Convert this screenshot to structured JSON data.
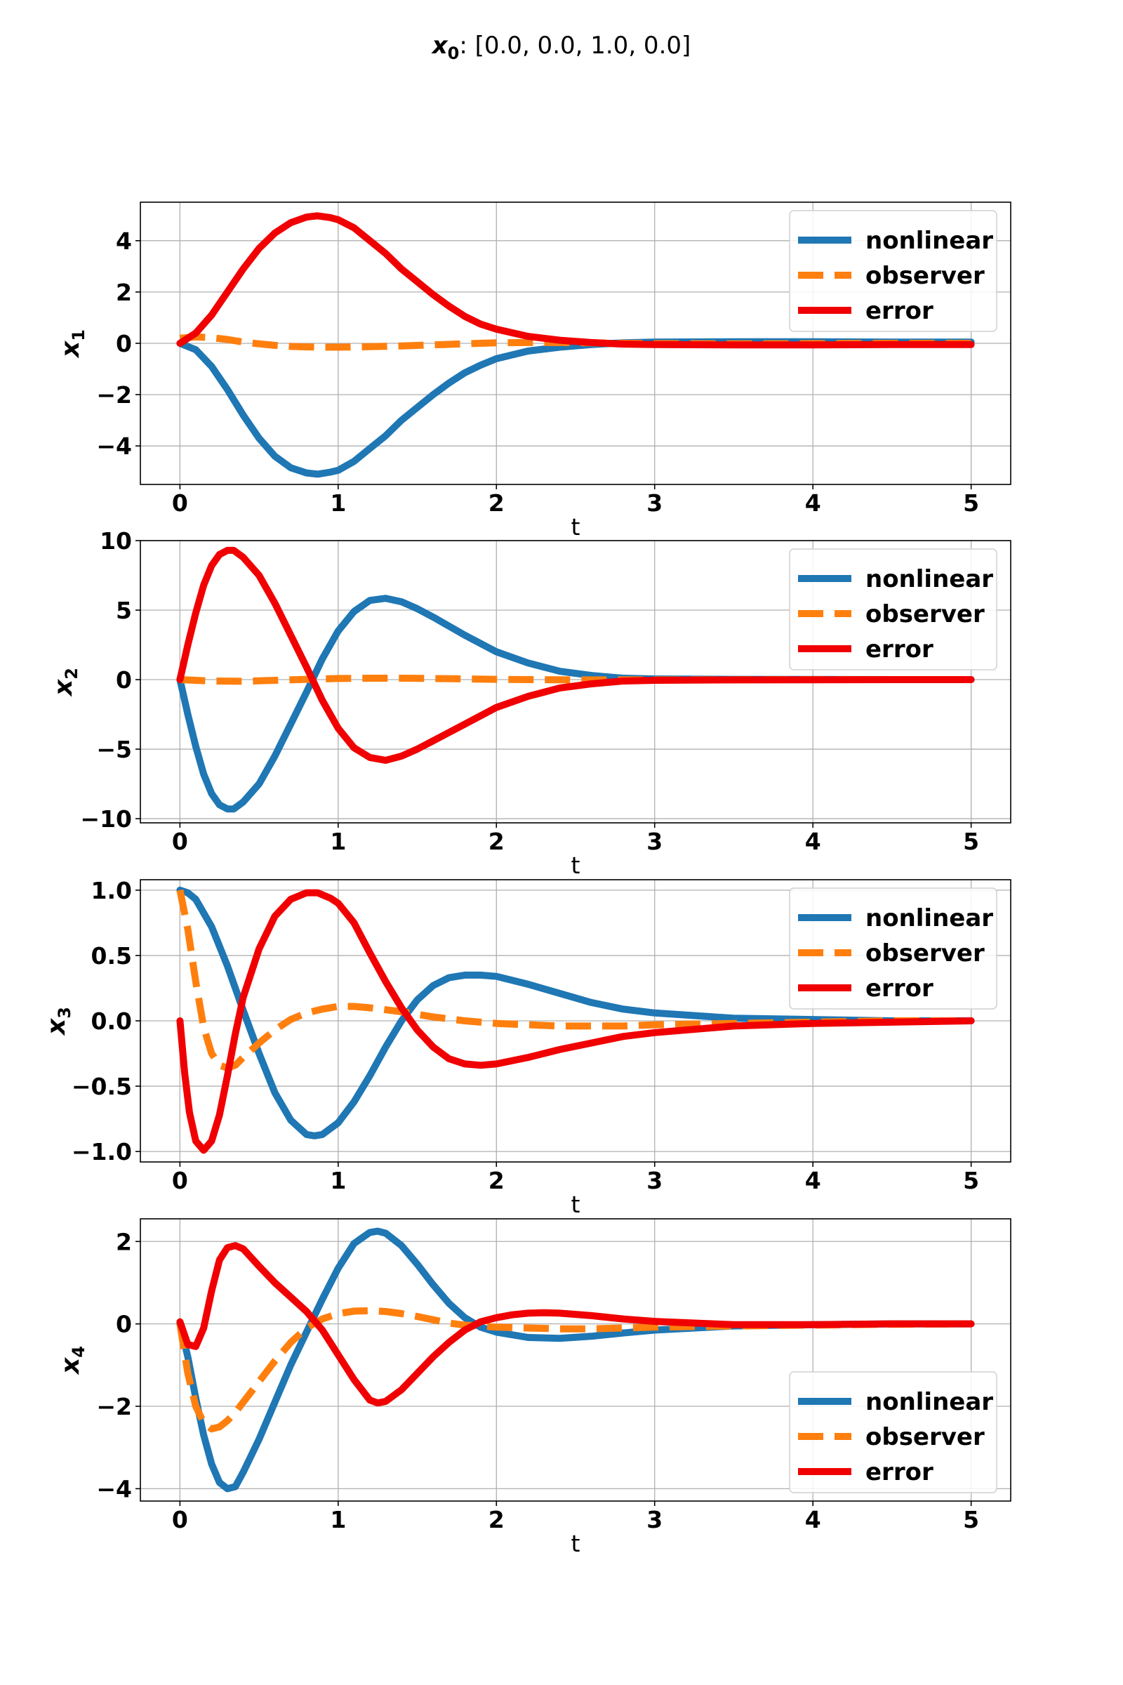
{
  "title": {
    "symbol": "x",
    "subscript": "0",
    "value": ": [0.0, 0.0, 1.0, 0.0]"
  },
  "colors": {
    "nonlinear": "#1f77b4",
    "observer": "#ff7f0e",
    "error": "#f00000",
    "grid": "#b0b0b0"
  },
  "chart_data": [
    {
      "type": "line",
      "xlabel": "t",
      "ylabel": "x",
      "ylabel_sub": "1",
      "xlim": [
        -0.25,
        5.25
      ],
      "ylim": [
        -5.5,
        5.5
      ],
      "xticks": [
        0,
        1,
        2,
        3,
        4,
        5
      ],
      "xtick_labels": [
        "0",
        "1",
        "2",
        "3",
        "4",
        "5"
      ],
      "yticks": [
        -4,
        -2,
        0,
        2,
        4
      ],
      "ytick_labels": [
        "−4",
        "−2",
        "0",
        "2",
        "4"
      ],
      "grid": true,
      "legend": "upper right",
      "series": [
        {
          "name": "nonlinear",
          "style": "solid",
          "x": [
            0,
            0.1,
            0.2,
            0.3,
            0.4,
            0.5,
            0.6,
            0.7,
            0.8,
            0.87,
            0.95,
            1.0,
            1.1,
            1.2,
            1.3,
            1.4,
            1.5,
            1.6,
            1.7,
            1.8,
            1.9,
            2.0,
            2.2,
            2.4,
            2.6,
            2.8,
            3.0,
            3.5,
            4.0,
            4.5,
            5.0
          ],
          "y": [
            0,
            -0.25,
            -0.9,
            -1.8,
            -2.8,
            -3.7,
            -4.4,
            -4.85,
            -5.05,
            -5.1,
            -5.02,
            -4.95,
            -4.6,
            -4.1,
            -3.6,
            -3.0,
            -2.5,
            -2.0,
            -1.55,
            -1.15,
            -0.85,
            -0.6,
            -0.3,
            -0.15,
            -0.05,
            0.02,
            0.05,
            0.06,
            0.06,
            0.05,
            0.05
          ]
        },
        {
          "name": "observer",
          "style": "dashed",
          "x": [
            0,
            0.1,
            0.2,
            0.3,
            0.4,
            0.5,
            0.6,
            0.7,
            0.8,
            0.9,
            1.0,
            1.2,
            1.4,
            1.6,
            1.8,
            2.0,
            2.2,
            2.4,
            2.6,
            2.8,
            3.0,
            3.5,
            4.0,
            4.5,
            5.0
          ],
          "y": [
            0.2,
            0.25,
            0.22,
            0.15,
            0.05,
            -0.02,
            -0.08,
            -0.12,
            -0.14,
            -0.15,
            -0.15,
            -0.13,
            -0.1,
            -0.06,
            -0.02,
            0.02,
            0.03,
            0.03,
            0.02,
            0.0,
            -0.01,
            -0.02,
            -0.01,
            0.0,
            0.0
          ]
        },
        {
          "name": "error",
          "style": "solid",
          "x": [
            0,
            0.1,
            0.2,
            0.3,
            0.4,
            0.5,
            0.6,
            0.7,
            0.8,
            0.87,
            0.95,
            1.0,
            1.1,
            1.2,
            1.3,
            1.4,
            1.5,
            1.6,
            1.7,
            1.8,
            1.9,
            2.0,
            2.2,
            2.4,
            2.6,
            2.8,
            3.0,
            3.5,
            4.0,
            4.5,
            5.0
          ],
          "y": [
            0,
            0.4,
            1.1,
            2.0,
            2.9,
            3.7,
            4.3,
            4.7,
            4.92,
            4.97,
            4.9,
            4.82,
            4.5,
            4.0,
            3.5,
            2.9,
            2.4,
            1.9,
            1.45,
            1.05,
            0.75,
            0.55,
            0.27,
            0.12,
            0.03,
            -0.03,
            -0.05,
            -0.06,
            -0.06,
            -0.05,
            -0.05
          ]
        }
      ]
    },
    {
      "type": "line",
      "xlabel": "t",
      "ylabel": "x",
      "ylabel_sub": "2",
      "xlim": [
        -0.25,
        5.25
      ],
      "ylim": [
        -10.3,
        10.0
      ],
      "xticks": [
        0,
        1,
        2,
        3,
        4,
        5
      ],
      "xtick_labels": [
        "0",
        "1",
        "2",
        "3",
        "4",
        "5"
      ],
      "yticks": [
        -10,
        -5,
        0,
        5,
        10
      ],
      "ytick_labels": [
        "−10",
        "−5",
        "0",
        "5",
        "10"
      ],
      "grid": true,
      "legend": "upper right",
      "series": [
        {
          "name": "nonlinear",
          "style": "solid",
          "x": [
            0,
            0.05,
            0.1,
            0.15,
            0.2,
            0.25,
            0.3,
            0.34,
            0.4,
            0.5,
            0.6,
            0.7,
            0.8,
            0.9,
            1.0,
            1.1,
            1.2,
            1.3,
            1.4,
            1.5,
            1.6,
            1.8,
            2.0,
            2.2,
            2.4,
            2.6,
            2.8,
            3.0,
            3.5,
            4.0,
            4.5,
            5.0
          ],
          "y": [
            0,
            -2.5,
            -4.8,
            -6.8,
            -8.2,
            -9.0,
            -9.3,
            -9.3,
            -8.8,
            -7.5,
            -5.5,
            -3.2,
            -0.9,
            1.5,
            3.5,
            4.9,
            5.7,
            5.85,
            5.6,
            5.1,
            4.5,
            3.2,
            2.0,
            1.2,
            0.6,
            0.3,
            0.1,
            0.05,
            0.02,
            0.01,
            0.0,
            0.0
          ]
        },
        {
          "name": "observer",
          "style": "dashed",
          "x": [
            0,
            0.2,
            0.4,
            0.6,
            0.8,
            1.0,
            1.2,
            1.4,
            1.6,
            1.8,
            2.0,
            2.2,
            2.5,
            3.0,
            3.5,
            4.0,
            4.5,
            5.0
          ],
          "y": [
            0,
            -0.1,
            -0.12,
            -0.05,
            0.02,
            0.08,
            0.1,
            0.1,
            0.08,
            0.05,
            0.02,
            0.0,
            -0.02,
            -0.02,
            -0.01,
            0.0,
            0.0,
            0.0
          ]
        },
        {
          "name": "error",
          "style": "solid",
          "x": [
            0,
            0.05,
            0.1,
            0.15,
            0.2,
            0.25,
            0.3,
            0.34,
            0.4,
            0.5,
            0.6,
            0.7,
            0.8,
            0.9,
            1.0,
            1.1,
            1.2,
            1.3,
            1.4,
            1.5,
            1.6,
            1.8,
            2.0,
            2.2,
            2.4,
            2.6,
            2.8,
            3.0,
            3.5,
            4.0,
            4.5,
            5.0
          ],
          "y": [
            0,
            2.5,
            4.8,
            6.8,
            8.2,
            9.0,
            9.3,
            9.3,
            8.8,
            7.5,
            5.5,
            3.2,
            0.9,
            -1.5,
            -3.5,
            -4.9,
            -5.6,
            -5.8,
            -5.5,
            -5.0,
            -4.4,
            -3.2,
            -2.0,
            -1.2,
            -0.6,
            -0.3,
            -0.1,
            -0.05,
            -0.02,
            -0.01,
            0.0,
            0.0
          ]
        }
      ]
    },
    {
      "type": "line",
      "xlabel": "t",
      "ylabel": "x",
      "ylabel_sub": "3",
      "xlim": [
        -0.25,
        5.25
      ],
      "ylim": [
        -1.08,
        1.08
      ],
      "xticks": [
        0,
        1,
        2,
        3,
        4,
        5
      ],
      "xtick_labels": [
        "0",
        "1",
        "2",
        "3",
        "4",
        "5"
      ],
      "yticks": [
        -1.0,
        -0.5,
        0.0,
        0.5,
        1.0
      ],
      "ytick_labels": [
        "−1.0",
        "−0.5",
        "0.0",
        "0.5",
        "1.0"
      ],
      "grid": true,
      "legend": "upper right",
      "series": [
        {
          "name": "nonlinear",
          "style": "solid",
          "x": [
            0,
            0.05,
            0.1,
            0.2,
            0.3,
            0.4,
            0.5,
            0.6,
            0.7,
            0.8,
            0.85,
            0.9,
            1.0,
            1.1,
            1.2,
            1.3,
            1.4,
            1.5,
            1.6,
            1.7,
            1.8,
            1.9,
            2.0,
            2.2,
            2.4,
            2.6,
            2.8,
            3.0,
            3.5,
            4.0,
            4.5,
            5.0
          ],
          "y": [
            1.0,
            0.98,
            0.93,
            0.72,
            0.42,
            0.08,
            -0.25,
            -0.55,
            -0.76,
            -0.87,
            -0.88,
            -0.87,
            -0.78,
            -0.62,
            -0.42,
            -0.2,
            0.0,
            0.16,
            0.27,
            0.33,
            0.35,
            0.35,
            0.34,
            0.28,
            0.21,
            0.14,
            0.09,
            0.06,
            0.02,
            0.01,
            0.0,
            0.0
          ]
        },
        {
          "name": "observer",
          "style": "dashed",
          "x": [
            0,
            0.05,
            0.1,
            0.15,
            0.2,
            0.25,
            0.3,
            0.35,
            0.4,
            0.5,
            0.6,
            0.7,
            0.8,
            0.9,
            1.0,
            1.1,
            1.2,
            1.4,
            1.6,
            1.8,
            2.0,
            2.2,
            2.4,
            2.6,
            2.8,
            3.0,
            3.5,
            4.0,
            4.5,
            5.0
          ],
          "y": [
            1.0,
            0.7,
            0.3,
            -0.05,
            -0.25,
            -0.34,
            -0.36,
            -0.34,
            -0.28,
            -0.17,
            -0.07,
            0.01,
            0.06,
            0.09,
            0.11,
            0.11,
            0.1,
            0.07,
            0.03,
            0.0,
            -0.02,
            -0.03,
            -0.04,
            -0.04,
            -0.04,
            -0.03,
            -0.02,
            -0.01,
            0.0,
            0.0
          ]
        },
        {
          "name": "error",
          "style": "solid",
          "x": [
            0,
            0.03,
            0.06,
            0.1,
            0.15,
            0.2,
            0.25,
            0.3,
            0.35,
            0.4,
            0.5,
            0.6,
            0.7,
            0.8,
            0.87,
            0.95,
            1.0,
            1.1,
            1.2,
            1.3,
            1.4,
            1.5,
            1.6,
            1.7,
            1.8,
            1.9,
            2.0,
            2.2,
            2.4,
            2.6,
            2.8,
            3.0,
            3.5,
            4.0,
            4.5,
            5.0
          ],
          "y": [
            0.0,
            -0.4,
            -0.7,
            -0.92,
            -0.99,
            -0.92,
            -0.72,
            -0.42,
            -0.1,
            0.18,
            0.55,
            0.8,
            0.93,
            0.98,
            0.98,
            0.94,
            0.9,
            0.75,
            0.52,
            0.3,
            0.1,
            -0.07,
            -0.2,
            -0.29,
            -0.33,
            -0.34,
            -0.33,
            -0.28,
            -0.22,
            -0.17,
            -0.12,
            -0.09,
            -0.04,
            -0.02,
            -0.01,
            0.0
          ]
        }
      ]
    },
    {
      "type": "line",
      "xlabel": "t",
      "ylabel": "x",
      "ylabel_sub": "4",
      "xlim": [
        -0.25,
        5.25
      ],
      "ylim": [
        -4.3,
        2.55
      ],
      "xticks": [
        0,
        1,
        2,
        3,
        4,
        5
      ],
      "xtick_labels": [
        "0",
        "1",
        "2",
        "3",
        "4",
        "5"
      ],
      "yticks": [
        -4,
        -2,
        0,
        2
      ],
      "ytick_labels": [
        "−4",
        "−2",
        "0",
        "2"
      ],
      "grid": true,
      "legend": "lower right",
      "series": [
        {
          "name": "nonlinear",
          "style": "solid",
          "x": [
            0,
            0.05,
            0.1,
            0.15,
            0.2,
            0.25,
            0.3,
            0.35,
            0.4,
            0.5,
            0.6,
            0.7,
            0.8,
            0.9,
            1.0,
            1.1,
            1.2,
            1.25,
            1.3,
            1.4,
            1.5,
            1.6,
            1.7,
            1.8,
            1.9,
            2.0,
            2.2,
            2.4,
            2.6,
            2.8,
            3.0,
            3.5,
            4.0,
            4.5,
            5.0
          ],
          "y": [
            0,
            -0.8,
            -1.8,
            -2.7,
            -3.4,
            -3.85,
            -4.0,
            -3.95,
            -3.6,
            -2.8,
            -1.9,
            -1.0,
            -0.2,
            0.6,
            1.35,
            1.95,
            2.22,
            2.25,
            2.2,
            1.9,
            1.45,
            0.95,
            0.5,
            0.15,
            -0.08,
            -0.2,
            -0.33,
            -0.35,
            -0.3,
            -0.22,
            -0.15,
            -0.05,
            -0.02,
            0.0,
            0.0
          ]
        },
        {
          "name": "observer",
          "style": "dashed",
          "x": [
            0,
            0.05,
            0.1,
            0.15,
            0.2,
            0.25,
            0.3,
            0.35,
            0.4,
            0.5,
            0.6,
            0.7,
            0.8,
            0.9,
            1.0,
            1.1,
            1.2,
            1.3,
            1.4,
            1.5,
            1.6,
            1.7,
            1.8,
            2.0,
            2.2,
            2.4,
            2.6,
            2.8,
            3.0,
            3.5,
            4.0,
            4.5,
            5.0
          ],
          "y": [
            0,
            -1.2,
            -2.0,
            -2.4,
            -2.55,
            -2.5,
            -2.35,
            -2.15,
            -1.9,
            -1.4,
            -0.9,
            -0.45,
            -0.1,
            0.12,
            0.25,
            0.31,
            0.32,
            0.3,
            0.25,
            0.18,
            0.1,
            0.02,
            -0.03,
            -0.08,
            -0.1,
            -0.12,
            -0.12,
            -0.1,
            -0.08,
            -0.05,
            -0.03,
            -0.01,
            0.0
          ]
        },
        {
          "name": "error",
          "style": "solid",
          "x": [
            0,
            0.05,
            0.1,
            0.15,
            0.2,
            0.25,
            0.3,
            0.35,
            0.4,
            0.5,
            0.6,
            0.7,
            0.8,
            0.9,
            1.0,
            1.1,
            1.2,
            1.25,
            1.3,
            1.4,
            1.5,
            1.6,
            1.7,
            1.8,
            1.9,
            2.0,
            2.1,
            2.2,
            2.3,
            2.4,
            2.6,
            2.8,
            3.0,
            3.5,
            4.0,
            4.5,
            5.0
          ],
          "y": [
            0.05,
            -0.5,
            -0.55,
            -0.1,
            0.8,
            1.55,
            1.85,
            1.9,
            1.82,
            1.4,
            1.0,
            0.65,
            0.3,
            -0.15,
            -0.75,
            -1.35,
            -1.85,
            -1.92,
            -1.88,
            -1.6,
            -1.2,
            -0.8,
            -0.45,
            -0.15,
            0.05,
            0.15,
            0.22,
            0.26,
            0.27,
            0.26,
            0.2,
            0.12,
            0.06,
            -0.02,
            -0.02,
            0.0,
            0.0
          ]
        }
      ]
    }
  ]
}
